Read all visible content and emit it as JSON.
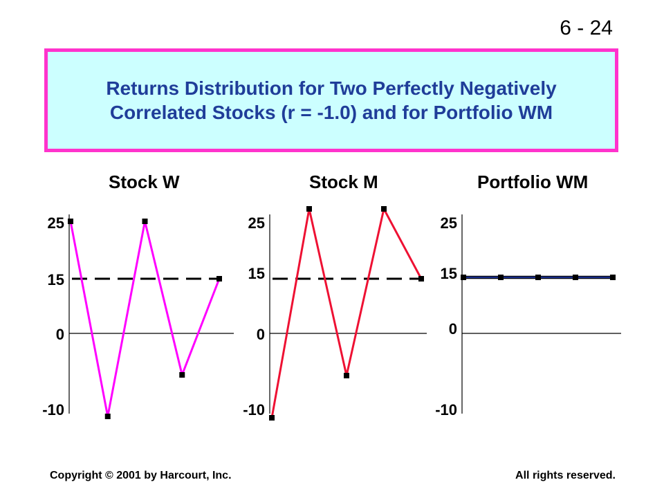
{
  "slide_number": "6 - 24",
  "title": "Returns Distribution for Two Perfectly Negatively Correlated Stocks (r = -1.0) and for Portfolio WM",
  "footer": {
    "copyright": "Copyright © 2001 by Harcourt, Inc.",
    "rights": "All rights reserved."
  },
  "colors": {
    "title_text": "#1f3d99",
    "title_background": "#ccffff",
    "title_border": "#ff33cc",
    "stock_w_line": "#ff00ff",
    "stock_m_line": "#ee1133",
    "portfolio_line": "#1a2e8a"
  },
  "chart_data": [
    {
      "type": "line",
      "title": "Stock W",
      "y_tick_labels": [
        "25",
        "15",
        "0",
        "-10"
      ],
      "ylim": [
        -10,
        25
      ],
      "x": [
        1,
        2,
        3,
        4,
        5
      ],
      "series": [
        {
          "values": [
            25,
            -10,
            25,
            -5,
            15
          ]
        }
      ],
      "reference_line": {
        "value": 15,
        "style": "dashed"
      }
    },
    {
      "type": "line",
      "title": "Stock M",
      "y_tick_labels": [
        "25",
        "15",
        "0",
        "-10"
      ],
      "ylim": [
        -10,
        25
      ],
      "x": [
        1,
        2,
        3,
        4,
        5
      ],
      "series": [
        {
          "values": [
            -10,
            25,
            -5,
            25,
            15
          ]
        }
      ],
      "reference_line": {
        "value": 15,
        "style": "dashed"
      }
    },
    {
      "type": "line",
      "title": "Portfolio WM",
      "y_tick_labels": [
        "25",
        "15",
        "0",
        "-10"
      ],
      "ylim": [
        -10,
        25
      ],
      "x": [
        1,
        2,
        3,
        4,
        5
      ],
      "series": [
        {
          "values": [
            15,
            15,
            15,
            15,
            15
          ]
        }
      ]
    }
  ]
}
